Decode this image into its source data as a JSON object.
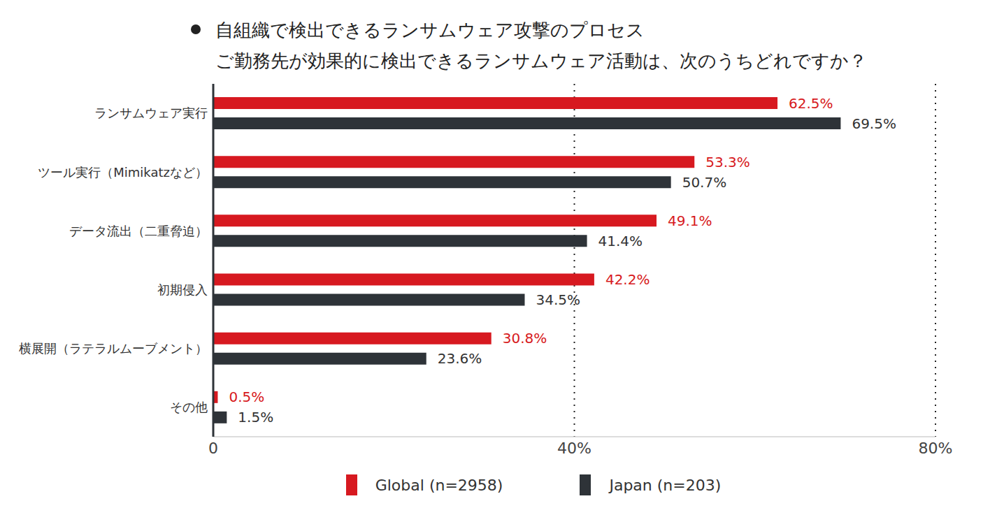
{
  "chart_data": {
    "type": "bar",
    "orientation": "horizontal",
    "title": "自組織で検出できるランサムウェア攻撃のプロセス",
    "subtitle": "ご勤務先が効果的に検出できるランサムウェア活動は、次のうちどれですか？",
    "categories": [
      "ランサムウェア実行",
      "ツール実行（Mimikatzなど）",
      "データ流出（二重脅迫）",
      "初期侵入",
      "横展開（ラテラルムーブメント）",
      "その他"
    ],
    "series": [
      {
        "name": "Global (n=2958)",
        "color": "#d71920",
        "values": [
          62.5,
          53.3,
          49.1,
          42.2,
          30.8,
          0.5
        ],
        "value_labels": [
          "62.5%",
          "53.3%",
          "49.1%",
          "42.2%",
          "30.8%",
          "0.5%"
        ]
      },
      {
        "name": "Japan (n=203)",
        "color": "#2e3338",
        "values": [
          69.5,
          50.7,
          41.4,
          34.5,
          23.6,
          1.5
        ],
        "value_labels": [
          "69.5%",
          "50.7%",
          "41.4%",
          "34.5%",
          "23.6%",
          "1.5%"
        ]
      }
    ],
    "xlim": [
      0,
      80
    ],
    "xticks": [
      0,
      {
        "value": 40,
        "label": "40%"
      },
      {
        "value": 80,
        "label": "80%"
      }
    ],
    "grid": true,
    "legend": "bottom",
    "data_labels": true
  }
}
